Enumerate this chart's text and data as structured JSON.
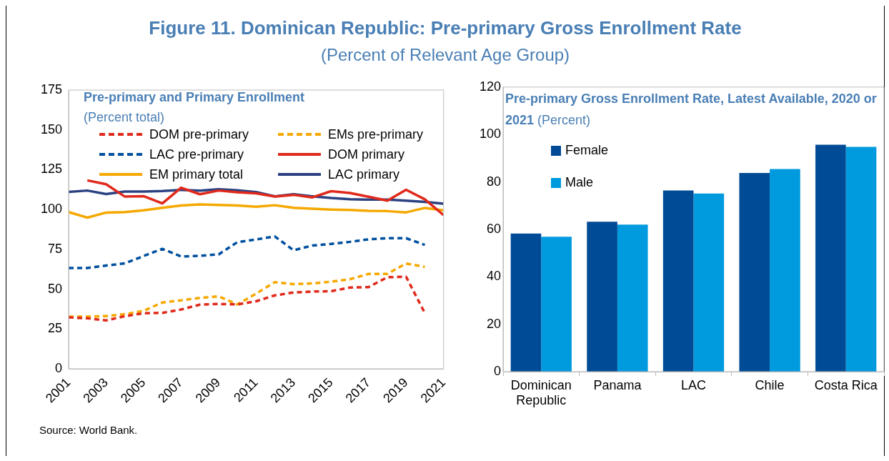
{
  "chart_data": [
    {
      "type": "line",
      "title": "Pre-primary and Primary Enrollment",
      "subtitle": "(Percent total)",
      "annotations": [
        "Figure 11. Dominican Republic: Pre-primary Gross Enrollment Rate",
        "(Percent of Relevant Age Group)",
        "Source: World Bank."
      ],
      "x": [
        2001,
        2002,
        2003,
        2004,
        2005,
        2006,
        2007,
        2008,
        2009,
        2010,
        2011,
        2012,
        2013,
        2014,
        2015,
        2016,
        2017,
        2018,
        2019,
        2020,
        2021
      ],
      "xlim": [
        2001,
        2021
      ],
      "xticks": [
        2001,
        2003,
        2005,
        2007,
        2009,
        2011,
        2013,
        2015,
        2017,
        2019,
        2021
      ],
      "ylim": [
        0,
        175
      ],
      "yticks": [
        0,
        25,
        50,
        75,
        100,
        125,
        150,
        175
      ],
      "grid": false,
      "legend": "top",
      "marker": "none",
      "series": [
        {
          "name": "DOM pre-primary",
          "color": "#e0291b",
          "line_style": "dashed",
          "values": [
            32.3,
            31.7,
            30.4,
            33,
            34.9,
            35.1,
            37.2,
            40.3,
            40.7,
            40.4,
            42.4,
            46.1,
            47.9,
            48.5,
            48.7,
            51,
            51.3,
            57.5,
            57.8,
            35,
            null
          ]
        },
        {
          "name": "EMs pre-primary",
          "color": "#f5a800",
          "line_style": "dashed",
          "values": [
            32.8,
            32.8,
            33.1,
            34.3,
            36.4,
            41.6,
            43,
            44.5,
            45.5,
            40.4,
            47.2,
            54.4,
            53.2,
            53.6,
            54.7,
            56.2,
            59.6,
            59.6,
            66.1,
            64,
            null
          ]
        },
        {
          "name": "LAC pre-primary",
          "color": "#0050a0",
          "line_style": "dashed",
          "values": [
            63.3,
            63.3,
            64.8,
            66.2,
            70.8,
            75.3,
            70.5,
            71,
            71.8,
            79.5,
            81.2,
            83.1,
            74.4,
            77.4,
            78.4,
            79.7,
            81.3,
            82,
            82,
            77.8,
            null
          ]
        },
        {
          "name": "DOM primary",
          "color": "#e0291b",
          "line_style": "solid",
          "values": [
            null,
            118.3,
            115.9,
            108.1,
            108.4,
            103.8,
            113.7,
            109.6,
            111.9,
            110.8,
            110.2,
            108.1,
            109.2,
            107.6,
            111.5,
            110.4,
            108,
            105.6,
            112.4,
            106.4,
            96.5
          ]
        },
        {
          "name": "EM primary total",
          "color": "#f5a800",
          "line_style": "solid",
          "values": [
            98.4,
            94.9,
            98.1,
            98.4,
            99.5,
            101.1,
            102.5,
            103.2,
            102.9,
            102.5,
            101.8,
            102.7,
            101.1,
            100.5,
            100,
            99.7,
            99.2,
            99,
            98.2,
            101,
            99.5
          ]
        },
        {
          "name": "LAC primary",
          "color": "#2b4182",
          "line_style": "solid",
          "values": [
            111.1,
            111.9,
            109.7,
            111.3,
            111.3,
            111.6,
            112.3,
            111.8,
            112.7,
            112.1,
            111,
            108.3,
            109.6,
            108.3,
            107.2,
            106.5,
            106.2,
            106.2,
            105.6,
            104.8,
            103.7
          ]
        }
      ]
    },
    {
      "type": "bar",
      "title": "Pre-primary Gross Enrollment Rate, Latest Available, 2020 or 2021",
      "subtitle": "(Percent)",
      "categories": [
        "Dominican Republic",
        "Panama",
        "LAC",
        "Chile",
        "Costa Rica"
      ],
      "ylim": [
        0,
        120
      ],
      "yticks": [
        0,
        20,
        40,
        60,
        80,
        100,
        120
      ],
      "grid": false,
      "legend": "top left",
      "series": [
        {
          "name": "Female",
          "color": "#004b96",
          "values": [
            58.2,
            63.2,
            76.4,
            83.8,
            95.7
          ]
        },
        {
          "name": "Male",
          "color": "#009ade",
          "values": [
            56.9,
            62,
            75.1,
            85.4,
            94.8
          ]
        }
      ]
    }
  ]
}
